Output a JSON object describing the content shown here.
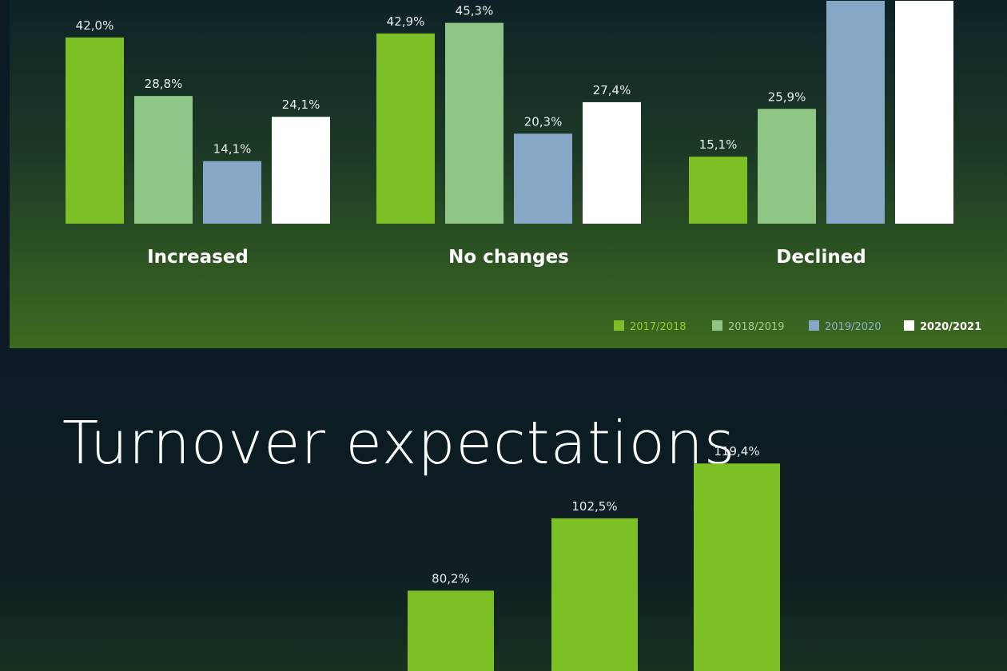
{
  "chart_data": [
    {
      "type": "bar",
      "categories": [
        "Increased",
        "No changes",
        "Declined"
      ],
      "series": [
        {
          "name": "2017/2018",
          "color": "#7cc026",
          "values": [
            42.0,
            42.9,
            15.1
          ],
          "labels": [
            "42,0%",
            "42,9%",
            "15,1%"
          ]
        },
        {
          "name": "2018/2019",
          "color": "#8fc585",
          "values": [
            28.8,
            45.3,
            25.9
          ],
          "labels": [
            "28,8%",
            "45,3%",
            "25,9%"
          ]
        },
        {
          "name": "2019/2020",
          "color": "#86a8c6",
          "values": [
            14.1,
            20.3,
            null
          ],
          "labels": [
            "14,1%",
            "20,3%",
            ""
          ]
        },
        {
          "name": "2020/2021",
          "color": "#ffffff",
          "values": [
            24.1,
            27.4,
            null
          ],
          "labels": [
            "24,1%",
            "27,4%",
            ""
          ]
        }
      ],
      "legend_position": "bottom-right"
    },
    {
      "type": "bar",
      "title": "Turnover expectations",
      "values": [
        80.2,
        102.5,
        119.4
      ],
      "labels": [
        "80,2%",
        "102,5%",
        "119,4%"
      ],
      "color": "#7cc026"
    }
  ]
}
